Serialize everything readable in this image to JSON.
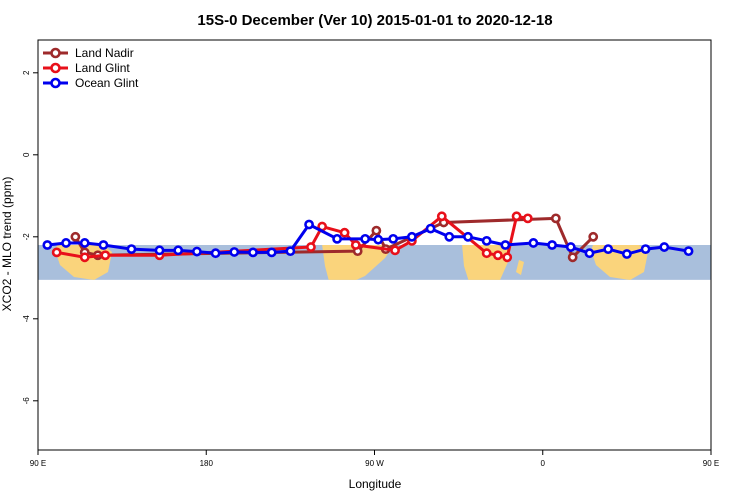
{
  "chart_data": {
    "type": "line",
    "title": "15S-0 December (Ver 10)   2015-01-01 to 2020-12-18",
    "xlabel": "Longitude",
    "ylabel": "XCO2 - MLO trend (ppm)",
    "xlim": [
      90,
      450
    ],
    "ylim": [
      -7.2,
      2.8
    ],
    "x_ticks": [
      {
        "value": 90,
        "label": "90 E"
      },
      {
        "value": 180,
        "label": "180"
      },
      {
        "value": 270,
        "label": "90 W"
      },
      {
        "value": 360,
        "label": "0"
      },
      {
        "value": 450,
        "label": "90 E"
      },
      {
        "value": 540,
        "label": "180"
      }
    ],
    "y_ticks": [
      {
        "value": 2,
        "label": "2"
      },
      {
        "value": 0,
        "label": "0"
      },
      {
        "value": -2,
        "label": "-2"
      },
      {
        "value": -4,
        "label": "-4"
      },
      {
        "value": -6,
        "label": "-6"
      }
    ],
    "map_band": {
      "ymin": -3.05,
      "ymax": -2.2,
      "ocean_color": "#a9bfdc",
      "land_color": "#fad47c"
    },
    "legend_position": "top-left",
    "series": [
      {
        "name": "Land Nadir",
        "color": "#9e2a2b",
        "x": [
          110,
          115,
          122,
          261,
          271,
          276,
          307,
          367,
          376,
          387
        ],
        "y": [
          -2.0,
          -2.38,
          -2.45,
          -2.35,
          -1.85,
          -2.3,
          -1.65,
          -1.55,
          -2.5,
          -2.0
        ]
      },
      {
        "name": "Land Glint",
        "color": "#e8101a",
        "x": [
          100,
          115,
          126,
          155,
          236,
          242,
          254,
          260,
          281,
          290,
          306,
          330,
          336,
          341,
          346,
          352
        ],
        "y": [
          -2.38,
          -2.5,
          -2.45,
          -2.45,
          -2.25,
          -1.75,
          -1.9,
          -2.2,
          -2.33,
          -2.1,
          -1.5,
          -2.4,
          -2.45,
          -2.5,
          -1.5,
          -1.55
        ]
      },
      {
        "name": "Ocean Glint",
        "color": "#0000ee",
        "x": [
          95,
          105,
          115,
          125,
          140,
          155,
          165,
          175,
          185,
          195,
          205,
          215,
          225,
          235,
          250,
          265,
          272,
          280,
          290,
          300,
          310,
          320,
          330,
          340,
          355,
          365,
          375,
          385,
          395,
          405,
          415,
          425,
          438
        ],
        "y": [
          -2.2,
          -2.15,
          -2.15,
          -2.2,
          -2.3,
          -2.33,
          -2.33,
          -2.36,
          -2.4,
          -2.37,
          -2.38,
          -2.38,
          -2.35,
          -1.7,
          -2.05,
          -2.05,
          -2.07,
          -2.05,
          -2.0,
          -1.8,
          -2.0,
          -2.0,
          -2.1,
          -2.2,
          -2.15,
          -2.2,
          -2.25,
          -2.4,
          -2.3,
          -2.42,
          -2.3,
          -2.25,
          -2.35
        ]
      }
    ]
  }
}
